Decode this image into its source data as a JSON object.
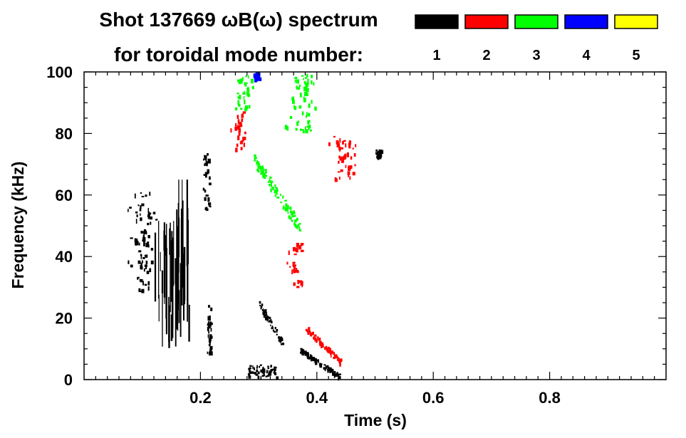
{
  "chart_data": {
    "type": "heatmap",
    "title_line1": "Shot 137669 ωB(ω) spectrum",
    "title_line2": "for toroidal mode number:",
    "xlabel": "Time (s)",
    "ylabel": "Frequency (kHz)",
    "xlim": [
      0.0,
      1.0
    ],
    "ylim": [
      0,
      100
    ],
    "x_ticks": [
      0.2,
      0.4,
      0.6,
      0.8
    ],
    "x_tick_labels": [
      "0.2",
      "0.4",
      "0.6",
      "0.8"
    ],
    "y_ticks": [
      0,
      20,
      40,
      60,
      80,
      100
    ],
    "y_tick_labels": [
      "0",
      "20",
      "40",
      "60",
      "80",
      "100"
    ],
    "legend": [
      {
        "label": "1",
        "color": "#000000"
      },
      {
        "label": "2",
        "color": "#ff0000"
      },
      {
        "label": "3",
        "color": "#00ff00"
      },
      {
        "label": "4",
        "color": "#0000ff"
      },
      {
        "label": "5",
        "color": "#ffff00"
      }
    ],
    "features": [
      {
        "mode": "1",
        "t": [
          0.08,
          0.12
        ],
        "f": [
          28,
          62
        ],
        "kind": "blob"
      },
      {
        "mode": "1",
        "t": [
          0.12,
          0.18
        ],
        "f": [
          8,
          65
        ],
        "kind": "streaks"
      },
      {
        "mode": "1",
        "t": [
          0.2,
          0.22
        ],
        "f": [
          55,
          75
        ],
        "kind": "blob"
      },
      {
        "mode": "1",
        "t": [
          0.21,
          0.22
        ],
        "f": [
          8,
          25
        ],
        "kind": "blob"
      },
      {
        "mode": "1",
        "t": [
          0.3,
          0.34
        ],
        "f": [
          12,
          25
        ],
        "kind": "chirp"
      },
      {
        "mode": "1",
        "t": [
          0.28,
          0.33
        ],
        "f": [
          1,
          5
        ],
        "kind": "band"
      },
      {
        "mode": "1",
        "t": [
          0.37,
          0.44
        ],
        "f": [
          1,
          10
        ],
        "kind": "chirp"
      },
      {
        "mode": "1",
        "t": [
          0.5,
          0.51
        ],
        "f": [
          72,
          75
        ],
        "kind": "blob"
      },
      {
        "mode": "2",
        "t": [
          0.255,
          0.28
        ],
        "f": [
          75,
          88
        ],
        "kind": "blob"
      },
      {
        "mode": "2",
        "t": [
          0.35,
          0.38
        ],
        "f": [
          30,
          45
        ],
        "kind": "blob"
      },
      {
        "mode": "2",
        "t": [
          0.38,
          0.44
        ],
        "f": [
          6,
          17
        ],
        "kind": "chirp"
      },
      {
        "mode": "2",
        "t": [
          0.42,
          0.47
        ],
        "f": [
          65,
          80
        ],
        "kind": "blob"
      },
      {
        "mode": "3",
        "t": [
          0.26,
          0.29
        ],
        "f": [
          88,
          100
        ],
        "kind": "blob"
      },
      {
        "mode": "3",
        "t": [
          0.35,
          0.4
        ],
        "f": [
          80,
          100
        ],
        "kind": "blob"
      },
      {
        "mode": "3",
        "t": [
          0.29,
          0.37
        ],
        "f": [
          50,
          72
        ],
        "kind": "chirp"
      },
      {
        "mode": "4",
        "t": [
          0.29,
          0.3
        ],
        "f": [
          98,
          100
        ],
        "kind": "blob"
      }
    ]
  }
}
